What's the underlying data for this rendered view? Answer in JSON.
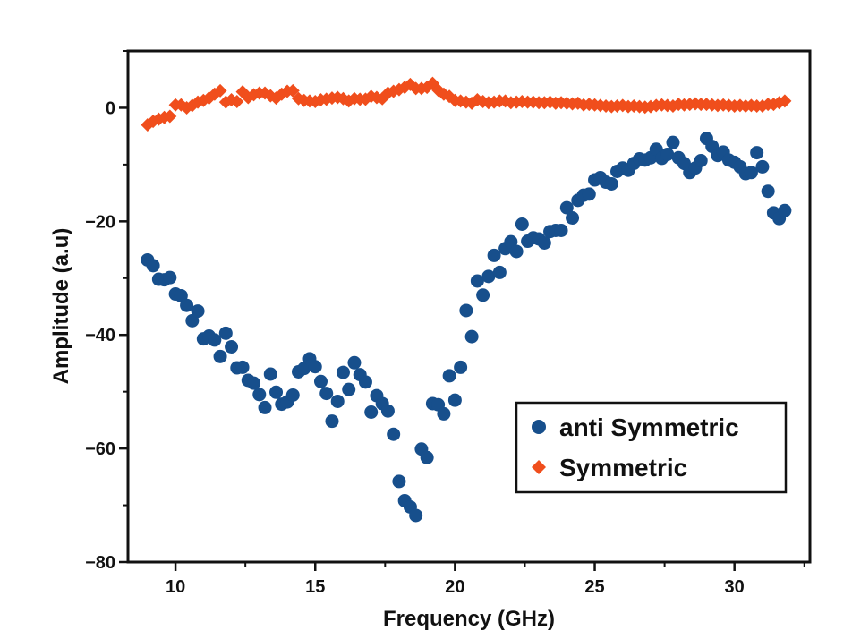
{
  "chart_data": {
    "type": "scatter",
    "xlabel": "Frequency (GHz)",
    "ylabel": "Amplitude (a.u)",
    "xlim": [
      8.3,
      32.7
    ],
    "ylim": [
      -80,
      10
    ],
    "x_ticks": [
      10,
      15,
      20,
      25,
      30
    ],
    "x_tick_labels": [
      "10",
      "15",
      "20",
      "25",
      "30"
    ],
    "y_ticks": [
      0,
      -20,
      -40,
      -60,
      -80
    ],
    "y_tick_labels": [
      "0",
      "−20",
      "−40",
      "−60",
      "−80"
    ],
    "grid": false,
    "legend_position": "bottom-right",
    "series": [
      {
        "name": "anti Symmetric",
        "marker": "circle",
        "color": "#174f8c",
        "points": [
          [
            9.0,
            -26.8
          ],
          [
            9.2,
            -27.8
          ],
          [
            9.4,
            -30.2
          ],
          [
            9.6,
            -30.3
          ],
          [
            9.8,
            -29.9
          ],
          [
            10.0,
            -32.8
          ],
          [
            10.2,
            -33.1
          ],
          [
            10.4,
            -34.8
          ],
          [
            10.6,
            -37.5
          ],
          [
            10.8,
            -35.8
          ],
          [
            11.0,
            -40.7
          ],
          [
            11.2,
            -40.2
          ],
          [
            11.4,
            -40.9
          ],
          [
            11.6,
            -43.8
          ],
          [
            11.8,
            -39.7
          ],
          [
            12.0,
            -42.1
          ],
          [
            12.2,
            -45.8
          ],
          [
            12.4,
            -45.7
          ],
          [
            12.6,
            -48.0
          ],
          [
            12.8,
            -48.5
          ],
          [
            13.0,
            -50.5
          ],
          [
            13.2,
            -52.8
          ],
          [
            13.4,
            -46.9
          ],
          [
            13.6,
            -50.1
          ],
          [
            13.8,
            -52.2
          ],
          [
            14.0,
            -51.8
          ],
          [
            14.2,
            -50.6
          ],
          [
            14.4,
            -46.5
          ],
          [
            14.6,
            -45.9
          ],
          [
            14.8,
            -44.2
          ],
          [
            15.0,
            -45.6
          ],
          [
            15.2,
            -48.2
          ],
          [
            15.4,
            -50.3
          ],
          [
            15.6,
            -55.2
          ],
          [
            15.8,
            -51.7
          ],
          [
            16.0,
            -46.6
          ],
          [
            16.2,
            -49.6
          ],
          [
            16.4,
            -44.9
          ],
          [
            16.6,
            -47.0
          ],
          [
            16.8,
            -48.3
          ],
          [
            17.0,
            -53.6
          ],
          [
            17.2,
            -50.7
          ],
          [
            17.4,
            -52.1
          ],
          [
            17.6,
            -53.4
          ],
          [
            17.8,
            -57.5
          ],
          [
            18.0,
            -65.8
          ],
          [
            18.2,
            -69.2
          ],
          [
            18.4,
            -70.3
          ],
          [
            18.6,
            -71.8
          ],
          [
            18.8,
            -60.1
          ],
          [
            19.0,
            -61.6
          ],
          [
            19.2,
            -52.1
          ],
          [
            19.4,
            -52.3
          ],
          [
            19.6,
            -53.9
          ],
          [
            19.8,
            -47.2
          ],
          [
            20.0,
            -51.5
          ],
          [
            20.2,
            -45.7
          ],
          [
            20.4,
            -35.7
          ],
          [
            20.6,
            -40.3
          ],
          [
            20.8,
            -30.5
          ],
          [
            21.0,
            -33.0
          ],
          [
            21.2,
            -29.7
          ],
          [
            21.4,
            -26.0
          ],
          [
            21.6,
            -29.0
          ],
          [
            21.8,
            -24.8
          ],
          [
            22.0,
            -23.6
          ],
          [
            22.2,
            -25.3
          ],
          [
            22.4,
            -20.5
          ],
          [
            22.6,
            -23.5
          ],
          [
            22.8,
            -22.9
          ],
          [
            23.0,
            -23.1
          ],
          [
            23.2,
            -23.8
          ],
          [
            23.4,
            -21.8
          ],
          [
            23.6,
            -21.6
          ],
          [
            23.8,
            -21.6
          ],
          [
            24.0,
            -17.6
          ],
          [
            24.2,
            -19.4
          ],
          [
            24.4,
            -16.3
          ],
          [
            24.6,
            -15.4
          ],
          [
            24.8,
            -15.2
          ],
          [
            25.0,
            -12.7
          ],
          [
            25.2,
            -12.3
          ],
          [
            25.4,
            -13.1
          ],
          [
            25.6,
            -13.4
          ],
          [
            25.8,
            -11.2
          ],
          [
            26.0,
            -10.6
          ],
          [
            26.2,
            -11.0
          ],
          [
            26.4,
            -9.8
          ],
          [
            26.6,
            -9.0
          ],
          [
            26.8,
            -9.2
          ],
          [
            27.0,
            -8.8
          ],
          [
            27.2,
            -7.3
          ],
          [
            27.4,
            -8.9
          ],
          [
            27.6,
            -8.2
          ],
          [
            27.8,
            -6.1
          ],
          [
            28.0,
            -8.8
          ],
          [
            28.2,
            -9.8
          ],
          [
            28.4,
            -11.4
          ],
          [
            28.6,
            -10.6
          ],
          [
            28.8,
            -9.3
          ],
          [
            29.0,
            -5.4
          ],
          [
            29.2,
            -6.8
          ],
          [
            29.4,
            -8.4
          ],
          [
            29.6,
            -7.8
          ],
          [
            29.8,
            -9.2
          ],
          [
            30.0,
            -9.6
          ],
          [
            30.2,
            -10.4
          ],
          [
            30.4,
            -11.6
          ],
          [
            30.6,
            -11.4
          ],
          [
            30.8,
            -7.9
          ],
          [
            31.0,
            -10.4
          ],
          [
            31.2,
            -14.7
          ],
          [
            31.4,
            -18.5
          ],
          [
            31.6,
            -19.5
          ],
          [
            31.8,
            -18.1
          ]
        ]
      },
      {
        "name": "Symmetric",
        "marker": "diamond",
        "color": "#f04e1c",
        "points": [
          [
            9.0,
            -3.0
          ],
          [
            9.2,
            -2.4
          ],
          [
            9.4,
            -2.0
          ],
          [
            9.6,
            -1.7
          ],
          [
            9.8,
            -1.5
          ],
          [
            10.0,
            0.5
          ],
          [
            10.2,
            0.5
          ],
          [
            10.4,
            0.0
          ],
          [
            10.6,
            0.4
          ],
          [
            10.8,
            1.0
          ],
          [
            11.0,
            1.3
          ],
          [
            11.2,
            1.7
          ],
          [
            11.4,
            2.4
          ],
          [
            11.6,
            3.0
          ],
          [
            11.8,
            1.0
          ],
          [
            12.0,
            1.4
          ],
          [
            12.2,
            1.1
          ],
          [
            12.4,
            2.8
          ],
          [
            12.6,
            1.8
          ],
          [
            12.8,
            2.3
          ],
          [
            13.0,
            2.6
          ],
          [
            13.2,
            2.6
          ],
          [
            13.4,
            2.1
          ],
          [
            13.6,
            1.7
          ],
          [
            13.8,
            2.4
          ],
          [
            14.0,
            2.9
          ],
          [
            14.2,
            3.0
          ],
          [
            14.4,
            1.6
          ],
          [
            14.6,
            1.3
          ],
          [
            14.8,
            1.2
          ],
          [
            15.0,
            1.1
          ],
          [
            15.2,
            1.4
          ],
          [
            15.4,
            1.5
          ],
          [
            15.6,
            1.7
          ],
          [
            15.8,
            1.8
          ],
          [
            16.0,
            1.6
          ],
          [
            16.2,
            1.2
          ],
          [
            16.4,
            1.6
          ],
          [
            16.6,
            1.5
          ],
          [
            16.8,
            1.5
          ],
          [
            17.0,
            2.0
          ],
          [
            17.2,
            1.8
          ],
          [
            17.4,
            1.6
          ],
          [
            17.6,
            2.6
          ],
          [
            17.8,
            2.9
          ],
          [
            18.0,
            3.2
          ],
          [
            18.2,
            3.6
          ],
          [
            18.4,
            4.1
          ],
          [
            18.6,
            3.4
          ],
          [
            18.8,
            3.4
          ],
          [
            19.0,
            3.6
          ],
          [
            19.2,
            4.3
          ],
          [
            19.4,
            3.1
          ],
          [
            19.6,
            2.4
          ],
          [
            19.8,
            2.0
          ],
          [
            20.0,
            1.3
          ],
          [
            20.2,
            1.2
          ],
          [
            20.4,
            1.0
          ],
          [
            20.6,
            0.8
          ],
          [
            20.8,
            1.4
          ],
          [
            21.0,
            1.1
          ],
          [
            21.2,
            0.9
          ],
          [
            21.4,
            1.0
          ],
          [
            21.6,
            1.2
          ],
          [
            21.8,
            1.2
          ],
          [
            22.0,
            0.9
          ],
          [
            22.2,
            1.0
          ],
          [
            22.4,
            1.1
          ],
          [
            22.6,
            1.0
          ],
          [
            22.8,
            1.0
          ],
          [
            23.0,
            0.9
          ],
          [
            23.2,
            0.9
          ],
          [
            23.4,
            1.0
          ],
          [
            23.6,
            0.8
          ],
          [
            23.8,
            0.9
          ],
          [
            24.0,
            0.8
          ],
          [
            24.2,
            0.7
          ],
          [
            24.4,
            0.8
          ],
          [
            24.6,
            0.5
          ],
          [
            24.8,
            0.6
          ],
          [
            25.0,
            0.5
          ],
          [
            25.2,
            0.4
          ],
          [
            25.4,
            0.3
          ],
          [
            25.6,
            0.2
          ],
          [
            25.8,
            0.3
          ],
          [
            26.0,
            0.4
          ],
          [
            26.2,
            0.2
          ],
          [
            26.4,
            0.3
          ],
          [
            26.6,
            0.2
          ],
          [
            26.8,
            0.1
          ],
          [
            27.0,
            0.2
          ],
          [
            27.2,
            0.4
          ],
          [
            27.4,
            0.5
          ],
          [
            27.6,
            0.4
          ],
          [
            27.8,
            0.3
          ],
          [
            28.0,
            0.6
          ],
          [
            28.2,
            0.5
          ],
          [
            28.4,
            0.6
          ],
          [
            28.6,
            0.7
          ],
          [
            28.8,
            0.6
          ],
          [
            29.0,
            0.6
          ],
          [
            29.2,
            0.5
          ],
          [
            29.4,
            0.4
          ],
          [
            29.6,
            0.5
          ],
          [
            29.8,
            0.4
          ],
          [
            30.0,
            0.3
          ],
          [
            30.2,
            0.4
          ],
          [
            30.4,
            0.3
          ],
          [
            30.6,
            0.4
          ],
          [
            30.8,
            0.3
          ],
          [
            31.0,
            0.3
          ],
          [
            31.2,
            0.6
          ],
          [
            31.4,
            0.6
          ],
          [
            31.6,
            0.9
          ],
          [
            31.8,
            1.2
          ]
        ]
      }
    ]
  }
}
